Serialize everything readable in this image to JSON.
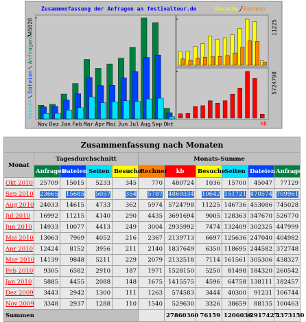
{
  "chart_data": [
    {
      "type": "bar",
      "title": "Zusammenfassung der Anfragen an festivaltour.de",
      "categories": [
        "Nov",
        "Dez",
        "Jan",
        "Feb",
        "Mar",
        "Apr",
        "Mai",
        "Jun",
        "Jul",
        "Aug",
        "Sep",
        "Okt"
      ],
      "series": [
        {
          "name": "Anfragen",
          "color": "#008040",
          "values": [
            100463,
            106744,
            182457,
            260542,
            438327,
            372748,
            404982,
            447999,
            526770,
            745028,
            709961,
            77129
          ]
        },
        {
          "name": "Dateien",
          "color": "#0040ff",
          "values": [
            88135,
            91231,
            138111,
            184320,
            305306,
            244582,
            247040,
            302325,
            347670,
            453086,
            470574,
            45047
          ]
        },
        {
          "name": "Seiten",
          "color": "#00e0ff",
          "values": [
            38659,
            40300,
            64758,
            81498,
            161561,
            118695,
            125636,
            132409,
            128363,
            146736,
            151721,
            15700
          ]
        }
      ],
      "ylim": [
        0,
        745028
      ],
      "yticks": [
        745028
      ]
    },
    {
      "type": "bar",
      "series": [
        {
          "name": "Besuche",
          "color": "#ffff00",
          "values": [
            3326,
            3444,
            4596,
            5250,
            7114,
            6350,
            6697,
            7474,
            9005,
            11225,
            10642,
            1036
          ]
        },
        {
          "name": "Rechner",
          "color": "#ff8000",
          "values": [
            1540,
            1263,
            1675,
            1971,
            2079,
            2140,
            2367,
            3004,
            4435,
            5974,
            5787,
            770
          ]
        }
      ],
      "ylim": [
        0,
        11225
      ],
      "yticks": [
        11225
      ]
    },
    {
      "type": "bar",
      "series": [
        {
          "name": "kb",
          "color": "#ff0000",
          "values": [
            529630,
            574583,
            1415575,
            1528150,
            2132518,
            1837649,
            2139713,
            2935992,
            3691694,
            5724798,
            4869334,
            480724
          ]
        }
      ],
      "ylim": [
        0,
        5724798
      ],
      "yticks": [
        5724798
      ]
    }
  ],
  "table": {
    "title": "Zusammenfassung nach Monaten",
    "month_header": "Monat",
    "groups": [
      "Tagesdurchschnitt",
      "Monats-Summe"
    ],
    "columns": [
      {
        "label": "Anfragen",
        "color": "#008040"
      },
      {
        "label": "Dateien",
        "color": "#0040ff"
      },
      {
        "label": "Seiten",
        "color": "#00e0ff"
      },
      {
        "label": "Besuche",
        "color": "#ffff00"
      },
      {
        "label": "Rechner",
        "color": "#ff8000"
      },
      {
        "label": "kb",
        "color": "#ff0000"
      },
      {
        "label": "Besuche",
        "color": "#ffff00"
      },
      {
        "label": "Seiten",
        "color": "#00e0ff"
      },
      {
        "label": "Dateien",
        "color": "#0040ff"
      },
      {
        "label": "Anfragen",
        "color": "#008040"
      }
    ],
    "rows": [
      [
        "Okt 2010",
        25709,
        15015,
        5233,
        345,
        770,
        480724,
        1036,
        15700,
        45047,
        77129
      ],
      [
        "Sep 2010",
        23665,
        15685,
        5057,
        354,
        5787,
        4869334,
        10642,
        151721,
        470574,
        709961
      ],
      [
        "Aug 2010",
        24033,
        14615,
        4733,
        362,
        5974,
        5724798,
        11225,
        146736,
        453086,
        745028
      ],
      [
        "Jul 2010",
        16992,
        11215,
        4140,
        290,
        4435,
        3691694,
        9005,
        128363,
        347670,
        526770
      ],
      [
        "Jun 2010",
        14933,
        10077,
        4413,
        249,
        3004,
        2935992,
        7474,
        132409,
        302325,
        447999
      ],
      [
        "Mai 2010",
        13063,
        7969,
        4052,
        216,
        2367,
        2139713,
        6697,
        125636,
        247040,
        404982
      ],
      [
        "Apr 2010",
        12424,
        8152,
        3956,
        211,
        2140,
        1837649,
        6350,
        118695,
        244582,
        372748
      ],
      [
        "Mar 2010",
        14139,
        9848,
        5211,
        229,
        2079,
        2132518,
        7114,
        161561,
        305306,
        438327
      ],
      [
        "Feb 2010",
        9305,
        6582,
        2910,
        187,
        1971,
        1528150,
        5250,
        81498,
        184320,
        260542
      ],
      [
        "Jan 2010",
        5885,
        4455,
        2088,
        148,
        1675,
        1415575,
        4596,
        64758,
        138111,
        182457
      ],
      [
        "Dez 2009",
        3443,
        2942,
        1300,
        111,
        1263,
        574583,
        3444,
        40300,
        91231,
        106744
      ],
      [
        "Nov 2009",
        3348,
        2937,
        1288,
        110,
        1540,
        529630,
        3326,
        38659,
        88135,
        100463
      ]
    ],
    "totals": {
      "label": "Summen",
      "values": [
        27860360,
        76159,
        1206036,
        2917427,
        4373150
      ]
    }
  }
}
